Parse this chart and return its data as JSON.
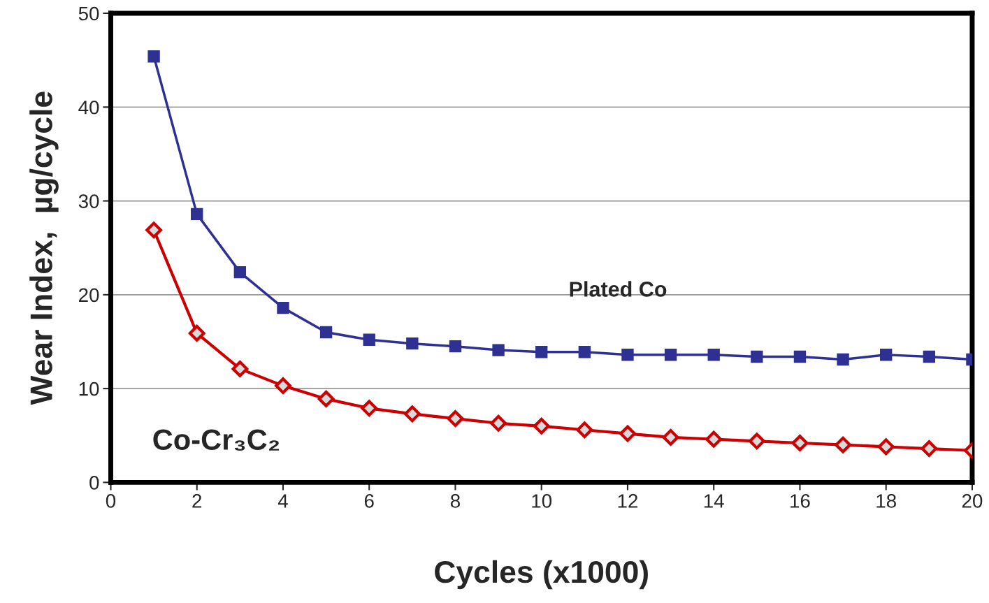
{
  "chart_data": {
    "type": "line",
    "xlabel": "Cycles (x1000)",
    "ylabel": "Wear Index,  µg/cycle",
    "x": [
      1,
      2,
      3,
      4,
      5,
      6,
      7,
      8,
      9,
      10,
      11,
      12,
      13,
      14,
      15,
      16,
      17,
      18,
      19,
      20
    ],
    "series": [
      {
        "name": "Plated Co",
        "color": "#2e3192",
        "marker": "square",
        "values": [
          45.4,
          28.6,
          22.4,
          18.6,
          16.0,
          15.2,
          14.8,
          14.5,
          14.1,
          13.9,
          13.9,
          13.6,
          13.6,
          13.6,
          13.4,
          13.4,
          13.1,
          13.6,
          13.4,
          13.1
        ]
      },
      {
        "name": "Co-Cr₃C₂",
        "color": "#cc0000",
        "marker": "diamond",
        "values": [
          26.9,
          15.9,
          12.1,
          10.3,
          8.9,
          7.9,
          7.3,
          6.8,
          6.3,
          6.0,
          5.6,
          5.2,
          4.8,
          4.6,
          4.4,
          4.2,
          4.0,
          3.8,
          3.6,
          3.4
        ]
      }
    ],
    "xlim": [
      0,
      20
    ],
    "xticks": [
      0,
      2,
      4,
      6,
      8,
      10,
      12,
      14,
      16,
      18,
      20
    ],
    "ylim": [
      0,
      50
    ],
    "yticks": [
      0,
      10,
      20,
      30,
      40,
      50
    ],
    "grid": "y",
    "legend": false,
    "line_style": "solid"
  }
}
